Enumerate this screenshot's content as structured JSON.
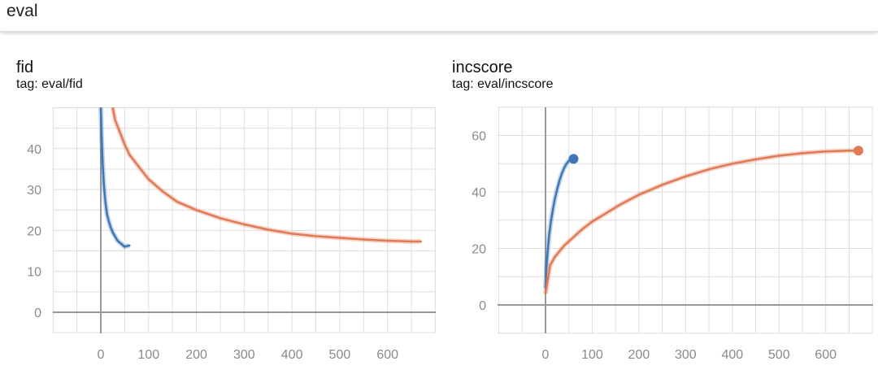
{
  "header": {
    "title": "eval"
  },
  "colors": {
    "blue": "#3f76b5",
    "orange": "#e07a55",
    "grid": "#dedede",
    "axis": "#999999",
    "tick": "#8a8a8a"
  },
  "chart_data": [
    {
      "type": "line",
      "title": "fid",
      "subtitle": "tag: eval/fid",
      "xlim": [
        -100,
        700
      ],
      "ylim": [
        -5,
        50
      ],
      "xticks": [
        0,
        100,
        200,
        300,
        400,
        500,
        600
      ],
      "yticks": [
        0,
        10,
        20,
        30,
        40
      ],
      "series": [
        {
          "color": "#3f76b5",
          "x": [
            0,
            2,
            4,
            6,
            8,
            10,
            13,
            16,
            20,
            25,
            30,
            35,
            40,
            45,
            50,
            55,
            60
          ],
          "y": [
            50,
            42,
            36,
            32,
            29,
            26.5,
            24,
            22.5,
            21,
            19.5,
            18.5,
            17.5,
            17,
            16.5,
            16,
            16.2,
            16.3
          ]
        },
        {
          "color": "#e07a55",
          "x": [
            25,
            30,
            40,
            50,
            60,
            80,
            100,
            130,
            160,
            200,
            250,
            300,
            350,
            400,
            450,
            500,
            550,
            600,
            650,
            670
          ],
          "y": [
            50,
            47,
            44,
            41,
            38.5,
            35.5,
            32.5,
            29.5,
            27,
            25,
            23,
            21.5,
            20.2,
            19.2,
            18.6,
            18.2,
            17.8,
            17.5,
            17.3,
            17.3
          ]
        }
      ]
    },
    {
      "type": "line",
      "title": "incscore",
      "subtitle": "tag: eval/incscore",
      "xlim": [
        -100,
        700
      ],
      "ylim": [
        -10,
        70
      ],
      "xticks": [
        0,
        100,
        200,
        300,
        400,
        500,
        600
      ],
      "yticks": [
        0,
        20,
        40,
        60
      ],
      "series": [
        {
          "color": "#3f76b5",
          "end_marker": true,
          "x": [
            0,
            2,
            5,
            8,
            12,
            16,
            20,
            25,
            30,
            35,
            40,
            45,
            50,
            55,
            60
          ],
          "y": [
            6,
            13,
            20,
            25,
            30,
            34,
            37.5,
            41,
            44,
            46.5,
            48.5,
            50,
            51,
            51.5,
            51.7
          ]
        },
        {
          "color": "#e07a55",
          "end_marker": true,
          "x": [
            0,
            10,
            20,
            40,
            60,
            80,
            100,
            130,
            160,
            200,
            250,
            300,
            350,
            400,
            450,
            500,
            550,
            600,
            650,
            670
          ],
          "y": [
            4,
            14,
            17,
            21,
            24,
            27,
            29.5,
            32.5,
            35.5,
            39,
            42.5,
            45.5,
            48,
            50,
            51.5,
            52.8,
            53.7,
            54.3,
            54.6,
            54.6
          ]
        }
      ]
    }
  ]
}
